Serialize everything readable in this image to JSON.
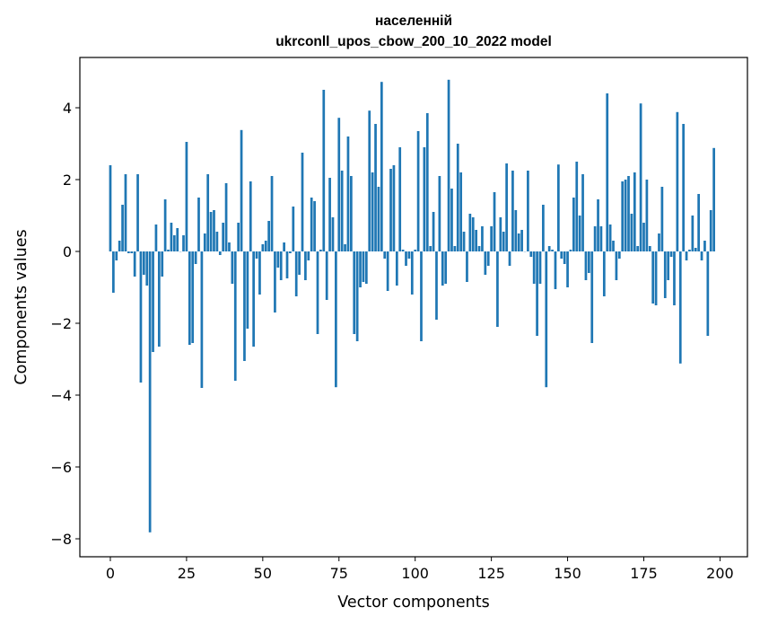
{
  "chart_data": {
    "type": "bar",
    "title_line1": "населенній",
    "title_line2": "ukrconll_upos_cbow_200_10_2022 model",
    "xlabel": "Vector components",
    "ylabel": "Components values",
    "xlim": [
      -10,
      209
    ],
    "ylim": [
      -8.5,
      5.4
    ],
    "xticks": [
      0,
      25,
      50,
      75,
      100,
      125,
      150,
      175,
      200
    ],
    "yticks": [
      -8,
      -6,
      -4,
      -2,
      0,
      2,
      4
    ],
    "ytick_labels": [
      "−8",
      "−6",
      "−4",
      "−2",
      "0",
      "2",
      "4"
    ],
    "bar_color": "#1f77b4",
    "grid": false,
    "values": [
      2.4,
      -1.15,
      -0.25,
      0.3,
      1.3,
      2.15,
      -0.05,
      -0.05,
      -0.7,
      2.15,
      -3.65,
      -0.65,
      -0.95,
      -7.82,
      -2.8,
      0.75,
      -2.65,
      -0.7,
      1.45,
      0.05,
      0.8,
      0.45,
      0.65,
      0.0,
      0.45,
      3.05,
      -2.6,
      -2.55,
      -0.35,
      1.5,
      -3.8,
      0.5,
      2.15,
      1.1,
      1.15,
      0.55,
      -0.1,
      0.8,
      1.9,
      0.25,
      -0.9,
      -3.6,
      0.8,
      3.38,
      -3.05,
      -2.15,
      1.95,
      -2.65,
      -0.2,
      -1.2,
      0.2,
      0.3,
      0.85,
      2.1,
      -1.7,
      -0.45,
      -0.8,
      0.25,
      -0.75,
      -0.05,
      1.25,
      -1.25,
      -0.65,
      2.75,
      -0.8,
      -0.25,
      1.5,
      1.4,
      -2.3,
      0.05,
      4.5,
      -1.35,
      2.05,
      0.95,
      -3.78,
      3.72,
      2.25,
      0.2,
      3.2,
      2.1,
      -2.3,
      -2.5,
      -1.0,
      -0.85,
      -0.9,
      3.92,
      2.2,
      3.55,
      1.8,
      4.72,
      -0.2,
      -1.1,
      2.3,
      2.4,
      -0.95,
      2.9,
      0.05,
      -0.4,
      -0.2,
      -1.2,
      0.05,
      3.35,
      -2.5,
      2.9,
      3.85,
      0.15,
      1.1,
      -1.9,
      2.1,
      -0.95,
      -0.9,
      4.78,
      1.75,
      0.15,
      3.0,
      2.2,
      0.55,
      -0.85,
      1.05,
      0.95,
      0.6,
      0.15,
      0.7,
      -0.65,
      -0.4,
      0.7,
      1.65,
      -2.1,
      0.95,
      0.55,
      2.45,
      -0.4,
      2.25,
      1.15,
      0.5,
      0.6,
      0.0,
      2.25,
      -0.15,
      -0.9,
      -2.35,
      -0.9,
      1.3,
      -3.78,
      0.15,
      0.05,
      -1.05,
      2.42,
      -0.2,
      -0.35,
      -1.0,
      0.05,
      1.5,
      2.5,
      1.0,
      2.15,
      -0.8,
      -0.6,
      -2.55,
      0.7,
      1.45,
      0.7,
      -1.25,
      4.4,
      0.75,
      0.3,
      -0.8,
      -0.2,
      1.95,
      2.0,
      2.1,
      1.05,
      2.2,
      0.15,
      4.12,
      0.8,
      2.0,
      0.15,
      -1.45,
      -1.5,
      0.5,
      1.8,
      -1.3,
      -0.8,
      -0.15,
      -1.5,
      3.88,
      -3.12,
      3.55,
      -0.25,
      0.05,
      1.0,
      0.1,
      1.6,
      -0.25,
      0.3,
      -2.35,
      1.15,
      2.88
    ]
  }
}
